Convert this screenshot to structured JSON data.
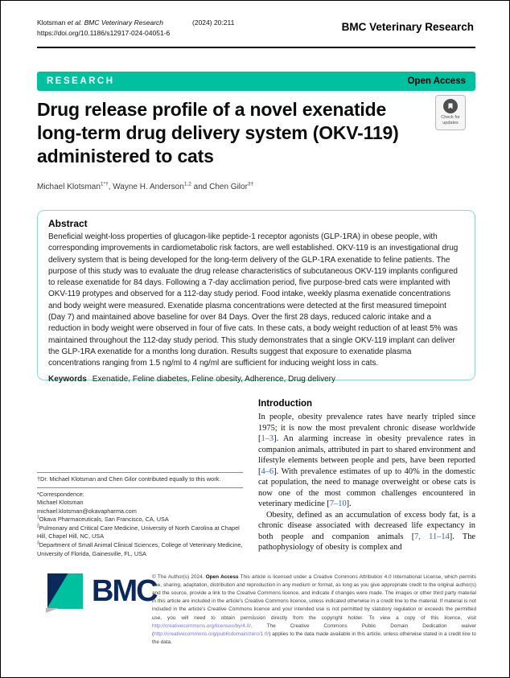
{
  "colors": {
    "teal": "#00c19f",
    "abstract_border": "#8edcc7",
    "navy": "#0b2a5b",
    "cite_blue": "#2b5dad",
    "link_purple": "#7a6ff0"
  },
  "header": {
    "citation_parts": [
      {
        "t": "Klotsman "
      },
      {
        "i": "et al. BMC Veterinary Research"
      }
    ],
    "citation_ref": "(2024) 20:211",
    "doi": "https://doi.org/10.1186/s12917-024-04051-6",
    "journal": "BMC Veterinary Research"
  },
  "banner": {
    "type_label": "RESEARCH",
    "access_label": "Open Access"
  },
  "title": "Drug release profile of a novel exenatide long-term drug delivery system (OKV-119) administered to cats",
  "check_badge": {
    "line1": "Check for",
    "line2": "updates"
  },
  "authors_parts": [
    {
      "t": "Michael Klotsman"
    },
    {
      "s": "1*†"
    },
    {
      "t": ", Wayne H. Anderson"
    },
    {
      "s": "1,2"
    },
    {
      "t": " and Chen Gilor"
    },
    {
      "s": "3†"
    }
  ],
  "abstract": {
    "heading": "Abstract",
    "body": "Beneficial weight-loss properties of glucagon-like peptide-1 receptor agonists (GLP-1RA) in obese people, with corresponding improvements in cardiometabolic risk factors, are well established. OKV-119 is an investigational drug delivery system that is being developed for the long-term delivery of the GLP-1RA exenatide to feline patients. The purpose of this study was to evaluate the drug release characteristics of subcutaneous OKV-119 implants configured to release exenatide for 84 days. Following a 7-day acclimation period, five purpose-bred cats were implanted with OKV-119 protypes and observed for a 112-day study period. Food intake, weekly plasma exenatide concentrations and body weight were measured. Exenatide plasma concentrations were detected at the first measured timepoint (Day 7) and maintained above baseline for over 84 Days. Over the first 28 days, reduced caloric intake and a reduction in body weight were observed in four of five cats. In these cats, a body weight reduction of at least 5% was maintained throughout the 112-day study period. This study demonstrates that a single OKV-119 implant can deliver the GLP-1RA exenatide for a months long duration. Results suggest that exposure to exenatide plasma concentrations ranging from 1.5 ng/ml to 4 ng/ml are sufficient for inducing weight loss in cats.",
    "keywords_label": "Keywords",
    "keywords": "Exenatide, Feline diabetes, Feline obesity, Adherence, Drug delivery"
  },
  "introduction": {
    "heading": "Introduction",
    "para1_parts": [
      {
        "t": "In people, obesity prevalence rates have nearly tripled since 1975; it is now the most prevalent chronic disease worldwide ["
      },
      {
        "c": "1–3"
      },
      {
        "t": "]. An alarming increase in obesity prevalence rates in companion animals, attributed in part to shared environment and lifestyle elements between people and pets, have been reported ["
      },
      {
        "c": "4–6"
      },
      {
        "t": "]. With prevalence estimates of up to 40% in the domestic cat population, the need to manage overweight or obese cats is now one of the most common challenges encountered in veterinary medicine ["
      },
      {
        "c": "7–10"
      },
      {
        "t": "]."
      }
    ],
    "para2_parts": [
      {
        "t": "Obesity, defined as an accumulation of excess body fat, is a chronic disease associated with decreased life expectancy in both people and companion animals ["
      },
      {
        "c": "7, 11–14"
      },
      {
        "t": "]. The pathophysiology of obesity is complex and"
      }
    ]
  },
  "footnotes": {
    "equal_note": "†Dr. Michael Klotsman and Chen Gilor contributed equally to this work.",
    "correspondence_label": "*Correspondence:",
    "correspondence_name": "Michael Klotsman",
    "correspondence_email": "michael.klotsman@okavapharma.com",
    "affil1": [
      {
        "s": "1"
      },
      {
        "t": "Okava Pharmaceuticals, San Francisco, CA, USA"
      }
    ],
    "affil2": [
      {
        "s": "2"
      },
      {
        "t": "Pulmonary and Critical Care Medicine, University of North Carolina at Chapel Hill, Chapel Hill, NC, USA"
      }
    ],
    "affil3": [
      {
        "s": "3"
      },
      {
        "t": "Department of Small Animal Clinical Sciences, College of Veterinary Medicine, University of Florida, Gainesville, FL, USA"
      }
    ]
  },
  "footer": {
    "logo_text": "BMC",
    "license_parts": [
      {
        "t": "© The Author(s) 2024. "
      },
      {
        "b": "Open Access"
      },
      {
        "t": " This article is licensed under a Creative Commons Attribution 4.0 International License, which permits use, sharing, adaptation, distribution and reproduction in any medium or format, as long as you give appropriate credit to the original author(s) and the source, provide a link to the Creative Commons licence, and indicate if changes were made. The images or other third party material in this article are included in the article’s Creative Commons licence, unless indicated otherwise in a credit line to the material. If material is not included in the article’s Creative Commons licence and your intended use is not permitted by statutory regulation or exceeds the permitted use, you will need to obtain permission directly from the copyright holder. To view a copy of this licence, visit "
      },
      {
        "l": "http://creativecommons.org/licenses/by/4.0/"
      },
      {
        "t": ". The Creative Commons Public Domain Dedication waiver ("
      },
      {
        "l": "http://creativecommons.org/publicdomain/zero/1.0/"
      },
      {
        "t": ") applies to the data made available in this article, unless otherwise stated in a credit line to the data."
      }
    ]
  }
}
